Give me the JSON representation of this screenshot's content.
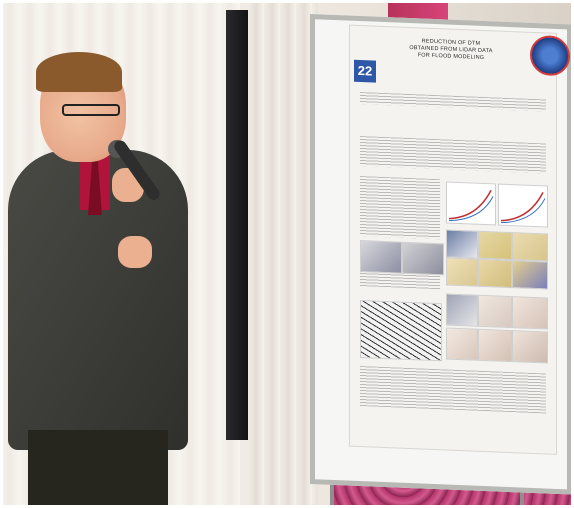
{
  "poster": {
    "number": "22",
    "title_lines": [
      "REDUCTION OF DTM",
      "OBTAINED FROM LIDAR DATA",
      "FOR FLOOD MODELING"
    ]
  },
  "colors": {
    "poster_number_bg": "#2f57a8",
    "floor_carpet": "#b2326a",
    "shirt": "#b0143b"
  }
}
